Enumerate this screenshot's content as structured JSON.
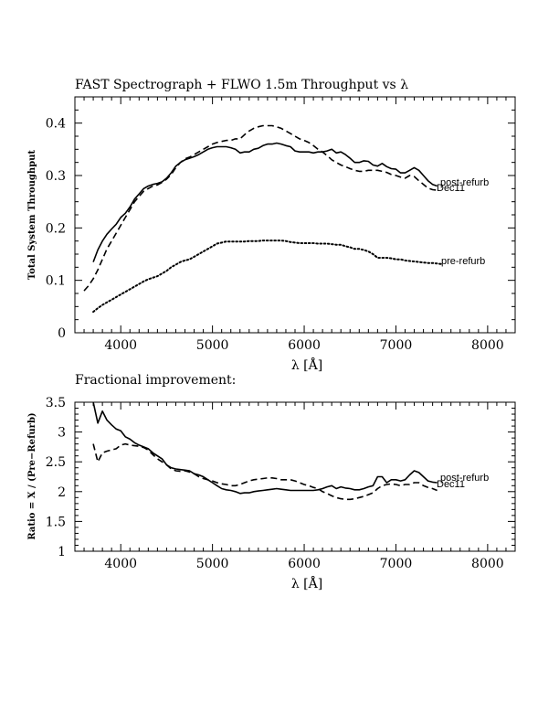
{
  "chart_data": [
    {
      "type": "line",
      "title": "FAST Spectrograph + FLWO 1.5m Throughput vs λ",
      "xlabel": "λ [Å]",
      "ylabel": "Total System Throughput",
      "xlim": [
        3500,
        8300
      ],
      "ylim": [
        0,
        0.45
      ],
      "x_ticks": [
        4000,
        5000,
        6000,
        7000,
        8000
      ],
      "x_tick_labels": [
        "4000",
        "5000",
        "6000",
        "7000",
        "8000"
      ],
      "y_ticks": [
        0,
        0.1,
        0.2,
        0.3,
        0.4
      ],
      "y_tick_labels": [
        "0",
        "0.1",
        "0.2",
        "0.3",
        "0.4"
      ],
      "series": [
        {
          "name": "post-refurb",
          "style": "solid",
          "x": [
            3700,
            3750,
            3800,
            3850,
            3900,
            3950,
            4000,
            4050,
            4100,
            4150,
            4200,
            4250,
            4300,
            4350,
            4400,
            4450,
            4500,
            4550,
            4600,
            4650,
            4700,
            4750,
            4800,
            4850,
            4900,
            4950,
            5000,
            5050,
            5100,
            5150,
            5200,
            5250,
            5300,
            5350,
            5400,
            5450,
            5500,
            5550,
            5600,
            5650,
            5700,
            5750,
            5800,
            5850,
            5900,
            5950,
            6000,
            6050,
            6100,
            6150,
            6200,
            6250,
            6300,
            6350,
            6400,
            6450,
            6500,
            6550,
            6600,
            6650,
            6700,
            6750,
            6800,
            6850,
            6900,
            6950,
            7000,
            7050,
            7100,
            7150,
            7200,
            7250,
            7300,
            7350,
            7400,
            7450
          ],
          "values": [
            0.135,
            0.158,
            0.175,
            0.188,
            0.198,
            0.207,
            0.22,
            0.228,
            0.24,
            0.255,
            0.265,
            0.275,
            0.28,
            0.283,
            0.285,
            0.288,
            0.295,
            0.305,
            0.318,
            0.325,
            0.33,
            0.333,
            0.336,
            0.34,
            0.345,
            0.35,
            0.353,
            0.355,
            0.355,
            0.355,
            0.353,
            0.35,
            0.343,
            0.345,
            0.345,
            0.35,
            0.352,
            0.357,
            0.36,
            0.36,
            0.362,
            0.36,
            0.357,
            0.355,
            0.347,
            0.345,
            0.345,
            0.345,
            0.343,
            0.345,
            0.345,
            0.347,
            0.35,
            0.343,
            0.345,
            0.34,
            0.333,
            0.325,
            0.325,
            0.328,
            0.327,
            0.32,
            0.318,
            0.323,
            0.317,
            0.313,
            0.312,
            0.305,
            0.305,
            0.31,
            0.315,
            0.31,
            0.3,
            0.29,
            0.283,
            0.28
          ]
        },
        {
          "name": "Dec11",
          "style": "dashed",
          "x": [
            3600,
            3650,
            3700,
            3750,
            3800,
            3850,
            3900,
            3950,
            4000,
            4050,
            4100,
            4150,
            4200,
            4250,
            4300,
            4350,
            4400,
            4450,
            4500,
            4550,
            4600,
            4650,
            4700,
            4750,
            4800,
            4850,
            4900,
            4950,
            5000,
            5050,
            5100,
            5150,
            5200,
            5250,
            5300,
            5350,
            5400,
            5450,
            5500,
            5550,
            5600,
            5650,
            5700,
            5750,
            5800,
            5850,
            5900,
            5950,
            6000,
            6050,
            6100,
            6150,
            6200,
            6250,
            6300,
            6350,
            6400,
            6450,
            6500,
            6550,
            6600,
            6650,
            6700,
            6750,
            6800,
            6850,
            6900,
            6950,
            7000,
            7050,
            7100,
            7150,
            7200,
            7250,
            7300,
            7350,
            7400,
            7450
          ],
          "values": [
            0.08,
            0.09,
            0.103,
            0.12,
            0.14,
            0.16,
            0.175,
            0.19,
            0.205,
            0.22,
            0.235,
            0.25,
            0.26,
            0.27,
            0.275,
            0.28,
            0.282,
            0.287,
            0.293,
            0.302,
            0.315,
            0.325,
            0.332,
            0.335,
            0.34,
            0.345,
            0.35,
            0.355,
            0.36,
            0.363,
            0.365,
            0.367,
            0.367,
            0.37,
            0.37,
            0.378,
            0.385,
            0.39,
            0.393,
            0.395,
            0.395,
            0.395,
            0.393,
            0.39,
            0.385,
            0.38,
            0.375,
            0.37,
            0.367,
            0.363,
            0.357,
            0.35,
            0.345,
            0.338,
            0.33,
            0.325,
            0.32,
            0.317,
            0.313,
            0.31,
            0.308,
            0.308,
            0.31,
            0.31,
            0.31,
            0.308,
            0.306,
            0.302,
            0.3,
            0.297,
            0.295,
            0.3,
            0.298,
            0.29,
            0.283,
            0.276,
            0.273,
            0.272
          ]
        },
        {
          "name": "pre-refurb",
          "style": "dotted",
          "x": [
            3700,
            3750,
            3800,
            3850,
            3900,
            3950,
            4000,
            4050,
            4100,
            4150,
            4200,
            4250,
            4300,
            4350,
            4400,
            4450,
            4500,
            4550,
            4600,
            4650,
            4700,
            4750,
            4800,
            4850,
            4900,
            4950,
            5000,
            5050,
            5100,
            5150,
            5200,
            5250,
            5300,
            5350,
            5400,
            5450,
            5500,
            5550,
            5600,
            5650,
            5700,
            5750,
            5800,
            5850,
            5900,
            5950,
            6000,
            6050,
            6100,
            6150,
            6200,
            6250,
            6300,
            6350,
            6400,
            6450,
            6500,
            6550,
            6600,
            6650,
            6700,
            6750,
            6800,
            6850,
            6900,
            6950,
            7000,
            7050,
            7100,
            7150,
            7200,
            7250,
            7300,
            7350,
            7400,
            7450,
            7500
          ],
          "values": [
            0.04,
            0.047,
            0.053,
            0.058,
            0.063,
            0.068,
            0.073,
            0.078,
            0.083,
            0.088,
            0.093,
            0.098,
            0.102,
            0.105,
            0.108,
            0.113,
            0.118,
            0.125,
            0.13,
            0.135,
            0.138,
            0.14,
            0.145,
            0.15,
            0.155,
            0.16,
            0.165,
            0.17,
            0.172,
            0.174,
            0.174,
            0.174,
            0.174,
            0.174,
            0.175,
            0.175,
            0.175,
            0.176,
            0.176,
            0.176,
            0.176,
            0.176,
            0.175,
            0.173,
            0.172,
            0.171,
            0.171,
            0.171,
            0.171,
            0.17,
            0.17,
            0.17,
            0.169,
            0.168,
            0.168,
            0.165,
            0.163,
            0.16,
            0.16,
            0.158,
            0.155,
            0.15,
            0.143,
            0.143,
            0.143,
            0.142,
            0.14,
            0.14,
            0.138,
            0.137,
            0.136,
            0.135,
            0.134,
            0.133,
            0.133,
            0.132,
            0.131
          ]
        }
      ]
    },
    {
      "type": "line",
      "title": "Fractional improvement:",
      "xlabel": "λ [Å]",
      "ylabel": "Ratio = X / (Pre−Refurb)",
      "xlim": [
        3500,
        8300
      ],
      "ylim": [
        1,
        3.5
      ],
      "x_ticks": [
        4000,
        5000,
        6000,
        7000,
        8000
      ],
      "x_tick_labels": [
        "4000",
        "5000",
        "6000",
        "7000",
        "8000"
      ],
      "y_ticks": [
        1,
        1.5,
        2,
        2.5,
        3,
        3.5
      ],
      "y_tick_labels": [
        "1",
        "1.5",
        "2",
        "2.5",
        "3",
        "3.5"
      ],
      "series": [
        {
          "name": "post-refurb",
          "style": "solid",
          "x": [
            3700,
            3750,
            3800,
            3850,
            3900,
            3950,
            4000,
            4050,
            4100,
            4150,
            4200,
            4250,
            4300,
            4350,
            4400,
            4450,
            4500,
            4550,
            4600,
            4650,
            4700,
            4750,
            4800,
            4850,
            4900,
            4950,
            5000,
            5050,
            5100,
            5150,
            5200,
            5250,
            5300,
            5350,
            5400,
            5450,
            5500,
            5550,
            5600,
            5650,
            5700,
            5750,
            5800,
            5850,
            5900,
            5950,
            6000,
            6050,
            6100,
            6150,
            6200,
            6250,
            6300,
            6350,
            6400,
            6450,
            6500,
            6550,
            6600,
            6650,
            6700,
            6750,
            6800,
            6850,
            6900,
            6950,
            7000,
            7050,
            7100,
            7150,
            7200,
            7250,
            7300,
            7350,
            7400,
            7450
          ],
          "values": [
            3.5,
            3.15,
            3.35,
            3.2,
            3.12,
            3.05,
            3.02,
            2.92,
            2.88,
            2.82,
            2.78,
            2.75,
            2.72,
            2.65,
            2.6,
            2.55,
            2.45,
            2.4,
            2.38,
            2.37,
            2.36,
            2.35,
            2.3,
            2.28,
            2.25,
            2.2,
            2.15,
            2.1,
            2.05,
            2.03,
            2.02,
            2.0,
            1.97,
            1.98,
            1.98,
            2.0,
            2.01,
            2.02,
            2.03,
            2.04,
            2.05,
            2.04,
            2.03,
            2.02,
            2.02,
            2.02,
            2.02,
            2.02,
            2.02,
            2.03,
            2.05,
            2.08,
            2.1,
            2.05,
            2.08,
            2.06,
            2.05,
            2.03,
            2.03,
            2.05,
            2.08,
            2.1,
            2.25,
            2.25,
            2.15,
            2.2,
            2.2,
            2.18,
            2.2,
            2.28,
            2.35,
            2.32,
            2.25,
            2.18,
            2.16,
            2.15
          ]
        },
        {
          "name": "Dec11",
          "style": "dashed",
          "x": [
            3700,
            3750,
            3800,
            3850,
            3900,
            3950,
            4000,
            4050,
            4100,
            4150,
            4200,
            4250,
            4300,
            4350,
            4400,
            4450,
            4500,
            4550,
            4600,
            4650,
            4700,
            4750,
            4800,
            4850,
            4900,
            4950,
            5000,
            5050,
            5100,
            5150,
            5200,
            5250,
            5300,
            5350,
            5400,
            5450,
            5500,
            5550,
            5600,
            5650,
            5700,
            5750,
            5800,
            5850,
            5900,
            5950,
            6000,
            6050,
            6100,
            6150,
            6200,
            6250,
            6300,
            6350,
            6400,
            6450,
            6500,
            6550,
            6600,
            6650,
            6700,
            6750,
            6800,
            6850,
            6900,
            6950,
            7000,
            7050,
            7100,
            7150,
            7200,
            7250,
            7300,
            7350,
            7400,
            7450
          ],
          "values": [
            2.8,
            2.5,
            2.65,
            2.68,
            2.7,
            2.72,
            2.78,
            2.8,
            2.78,
            2.77,
            2.76,
            2.74,
            2.7,
            2.62,
            2.55,
            2.5,
            2.45,
            2.38,
            2.35,
            2.34,
            2.35,
            2.33,
            2.3,
            2.25,
            2.22,
            2.2,
            2.18,
            2.15,
            2.13,
            2.12,
            2.1,
            2.1,
            2.12,
            2.15,
            2.18,
            2.2,
            2.21,
            2.22,
            2.23,
            2.23,
            2.22,
            2.2,
            2.2,
            2.2,
            2.18,
            2.15,
            2.12,
            2.1,
            2.07,
            2.05,
            2.0,
            1.97,
            1.93,
            1.9,
            1.88,
            1.87,
            1.87,
            1.88,
            1.9,
            1.92,
            1.95,
            1.98,
            2.05,
            2.1,
            2.12,
            2.13,
            2.12,
            2.1,
            2.12,
            2.12,
            2.15,
            2.15,
            2.1,
            2.07,
            2.05,
            2.02
          ]
        }
      ]
    }
  ]
}
